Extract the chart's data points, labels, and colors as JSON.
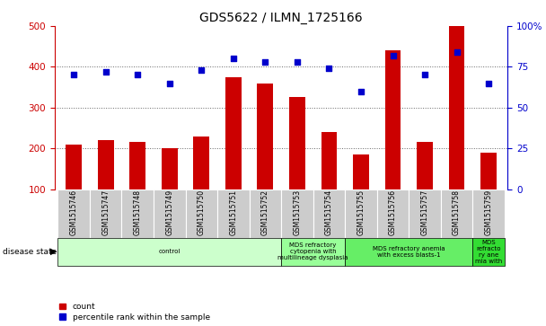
{
  "title": "GDS5622 / ILMN_1725166",
  "samples": [
    "GSM1515746",
    "GSM1515747",
    "GSM1515748",
    "GSM1515749",
    "GSM1515750",
    "GSM1515751",
    "GSM1515752",
    "GSM1515753",
    "GSM1515754",
    "GSM1515755",
    "GSM1515756",
    "GSM1515757",
    "GSM1515758",
    "GSM1515759"
  ],
  "counts": [
    210,
    220,
    215,
    200,
    230,
    375,
    360,
    325,
    240,
    185,
    440,
    215,
    500,
    190
  ],
  "percentile_ranks": [
    70,
    72,
    70,
    65,
    73,
    80,
    78,
    78,
    74,
    60,
    82,
    70,
    84,
    65
  ],
  "disease_states": [
    {
      "label": "control",
      "start": 0,
      "end": 7,
      "color": "#ccffcc"
    },
    {
      "label": "MDS refractory\ncytopenia with\nmultilineage dysplasia",
      "start": 7,
      "end": 9,
      "color": "#99ff99"
    },
    {
      "label": "MDS refractory anemia\nwith excess blasts-1",
      "start": 9,
      "end": 13,
      "color": "#66ee66"
    },
    {
      "label": "MDS\nrefracto\nry ane\nmia with",
      "start": 13,
      "end": 14,
      "color": "#33dd33"
    }
  ],
  "bar_color": "#cc0000",
  "dot_color": "#0000cc",
  "left_ylim": [
    100,
    500
  ],
  "left_yticks": [
    100,
    200,
    300,
    400,
    500
  ],
  "right_ylim": [
    0,
    100
  ],
  "right_yticks": [
    0,
    25,
    50,
    75,
    100
  ],
  "right_yticklabels": [
    "0",
    "25",
    "50",
    "75",
    "100%"
  ],
  "bg_color": "#ffffff",
  "tick_bg": "#cccccc",
  "grid_color": "#666666",
  "title_fontsize": 10,
  "sample_fontsize": 5.5,
  "disease_label": "disease state"
}
